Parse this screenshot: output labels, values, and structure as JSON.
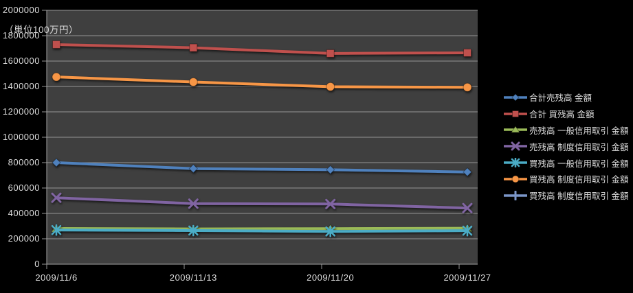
{
  "chart_data": {
    "type": "line",
    "unit_label": "（単位100万円）",
    "x": [
      "2009/11/6",
      "2009/11/13",
      "2009/11/20",
      "2009/11/27"
    ],
    "y_ticks": [
      "0",
      "200000",
      "400000",
      "600000",
      "800000",
      "1000000",
      "1200000",
      "1400000",
      "1600000",
      "1800000",
      "2000000"
    ],
    "ylim": [
      0,
      2000000
    ],
    "grid": "horizontal",
    "legend_position": "right",
    "background": "#000000",
    "plot_background": "#3f3f3f",
    "gridline_color": "#969696",
    "axis_color": "#a6a6a6",
    "text_color": "#dcdcdc",
    "series": [
      {
        "name": "合計売残高 金額",
        "color": "#4F81BD",
        "marker": "diamond",
        "values": [
          800000,
          753000,
          744000,
          726000
        ]
      },
      {
        "name": "合計 買残高 金額",
        "color": "#C0504D",
        "marker": "square",
        "values": [
          1730000,
          1705000,
          1660000,
          1665000
        ]
      },
      {
        "name": "売残高 一般信用取引 金額",
        "color": "#9BBB59",
        "marker": "triangle",
        "values": [
          281000,
          278000,
          280000,
          283000
        ]
      },
      {
        "name": "売残高 制度信用取引 金額",
        "color": "#8064A2",
        "marker": "x",
        "values": [
          523000,
          477000,
          474000,
          442000
        ]
      },
      {
        "name": "買残高 一般信用取引 金額",
        "color": "#4BACC6",
        "marker": "star",
        "values": [
          269000,
          265000,
          258000,
          264000
        ]
      },
      {
        "name": "買残高 制度信用取引 金額",
        "color": "#F79646",
        "marker": "circle",
        "values": [
          1475000,
          1435000,
          1398000,
          1393000
        ]
      },
      {
        "name": "買残高 制度信用取引 金額",
        "color": "#7B96C8",
        "marker": "plus",
        "values": null
      }
    ]
  }
}
